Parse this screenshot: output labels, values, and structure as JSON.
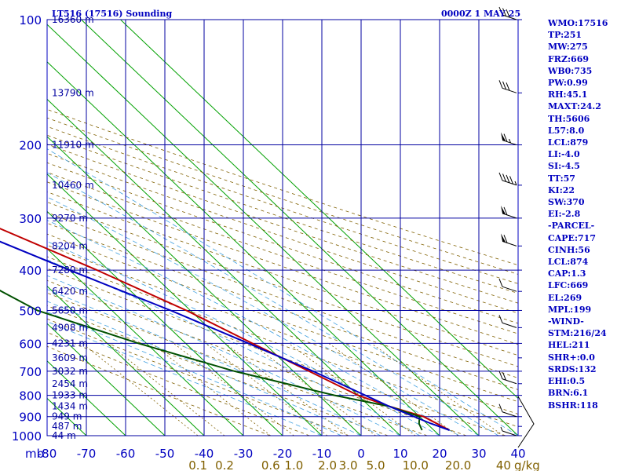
{
  "header": {
    "station_title": "LT516 (17516) Sounding",
    "time_label": "0000Z  1 MAY 25"
  },
  "chart_data": {
    "type": "line",
    "subtype": "skew-t log-p sounding",
    "pressure_axis": {
      "unit_label": "mb",
      "ticks": [
        100,
        200,
        300,
        400,
        500,
        600,
        700,
        800,
        900,
        1000
      ],
      "scale": "log",
      "range": [
        100,
        1000
      ]
    },
    "temperature_axis": {
      "ticks": [
        -80,
        -70,
        -60,
        -50,
        -40,
        -30,
        -20,
        -10,
        0,
        10,
        20,
        30,
        40
      ],
      "range": [
        -80,
        40
      ]
    },
    "height_labels": [
      {
        "p": 100,
        "label": "16360 m"
      },
      {
        "p": 150,
        "label": "13790 m"
      },
      {
        "p": 200,
        "label": "11910 m"
      },
      {
        "p": 250,
        "label": "10460 m"
      },
      {
        "p": 300,
        "label": "9270 m"
      },
      {
        "p": 350,
        "label": "8204 m"
      },
      {
        "p": 400,
        "label": "7280 m"
      },
      {
        "p": 450,
        "label": "6420 m"
      },
      {
        "p": 500,
        "label": "5650 m"
      },
      {
        "p": 550,
        "label": "4908 m"
      },
      {
        "p": 600,
        "label": "4231 m"
      },
      {
        "p": 650,
        "label": "3609 m"
      },
      {
        "p": 700,
        "label": "3032 m"
      },
      {
        "p": 750,
        "label": "2454 m"
      },
      {
        "p": 800,
        "label": "1933 m"
      },
      {
        "p": 850,
        "label": "1434 m"
      },
      {
        "p": 900,
        "label": "949 m"
      },
      {
        "p": 950,
        "label": "487 m"
      },
      {
        "p": 1000,
        "label": "44 m"
      }
    ],
    "mixing_ratio_labels": [
      {
        "label": "0.1",
        "value": 0.1
      },
      {
        "label": "0.2",
        "value": 0.2
      },
      {
        "label": "0.6",
        "value": 0.6
      },
      {
        "label": "1.0",
        "value": 1.0
      },
      {
        "label": "2.0",
        "value": 2.0
      },
      {
        "label": "3.0",
        "value": 3.0
      },
      {
        "label": "5.0",
        "value": 5.0
      },
      {
        "label": "10.0",
        "value": 10.0
      },
      {
        "label": "20.0",
        "value": 20.0
      },
      {
        "label": "40",
        "value": 40
      }
    ],
    "mixing_ratio_unit": "g/kg",
    "series": [
      {
        "color": "#c00000",
        "points": [
          [
            100,
            -58
          ],
          [
            150,
            -40
          ],
          [
            200,
            -38
          ],
          [
            250,
            -39
          ],
          [
            300,
            -40
          ],
          [
            400,
            -23
          ],
          [
            500,
            -11
          ],
          [
            600,
            -3
          ],
          [
            700,
            4
          ],
          [
            800,
            10
          ],
          [
            850,
            15
          ],
          [
            900,
            21
          ],
          [
            970,
            24
          ]
        ]
      },
      {
        "color": "#005000",
        "points": [
          [
            200,
            -66
          ],
          [
            250,
            -72
          ],
          [
            300,
            -70
          ],
          [
            400,
            -57
          ],
          [
            450,
            -53
          ],
          [
            500,
            -49
          ],
          [
            600,
            -32
          ],
          [
            700,
            -15
          ],
          [
            800,
            4
          ],
          [
            850,
            15
          ],
          [
            900,
            20
          ],
          [
            935,
            18
          ],
          [
            970,
            17
          ]
        ]
      },
      {
        "color": "#0000c0",
        "points": [
          [
            150,
            -91
          ],
          [
            250,
            -60
          ],
          [
            400,
            -30
          ],
          [
            500,
            -15
          ],
          [
            600,
            -4
          ],
          [
            700,
            5
          ],
          [
            850,
            15
          ],
          [
            935,
            21
          ],
          [
            970,
            24
          ]
        ]
      }
    ],
    "wind_barbs": [
      {
        "p": 100,
        "speed_kt": 30
      },
      {
        "p": 150,
        "speed_kt": 30
      },
      {
        "p": 200,
        "speed_kt": 65
      },
      {
        "p": 250,
        "speed_kt": 45
      },
      {
        "p": 300,
        "speed_kt": 60
      },
      {
        "p": 350,
        "speed_kt": 60
      },
      {
        "p": 450,
        "speed_kt": 10
      },
      {
        "p": 550,
        "speed_kt": 10
      },
      {
        "p": 750,
        "speed_kt": 20
      },
      {
        "p": 900,
        "speed_kt": 10
      },
      {
        "p": 1000,
        "speed_kt": 5
      }
    ]
  },
  "indices": [
    "WMO:17516",
    "TP:251",
    "MW:275",
    "FRZ:669",
    "WB0:735",
    "PW:0.99",
    "RH:45.1",
    "MAXT:24.2",
    "TH:5606",
    "L57:8.0",
    "LCL:879",
    "LI:-4.0",
    "SI:-4.5",
    "TT:57",
    "KI:22",
    "SW:370",
    "EI:-2.8",
    "-PARCEL-",
    "CAPE:717",
    "CINH:56",
    "LCL:874",
    "CAP:1.3",
    "LFC:669",
    "EL:269",
    "MPL:199",
    "-WIND-",
    "STM:216/24",
    "HEL:211",
    "SHR+:0.0",
    "SRDS:132",
    "EHI:0.5",
    "BRN:6.1",
    "BSHR:118"
  ]
}
